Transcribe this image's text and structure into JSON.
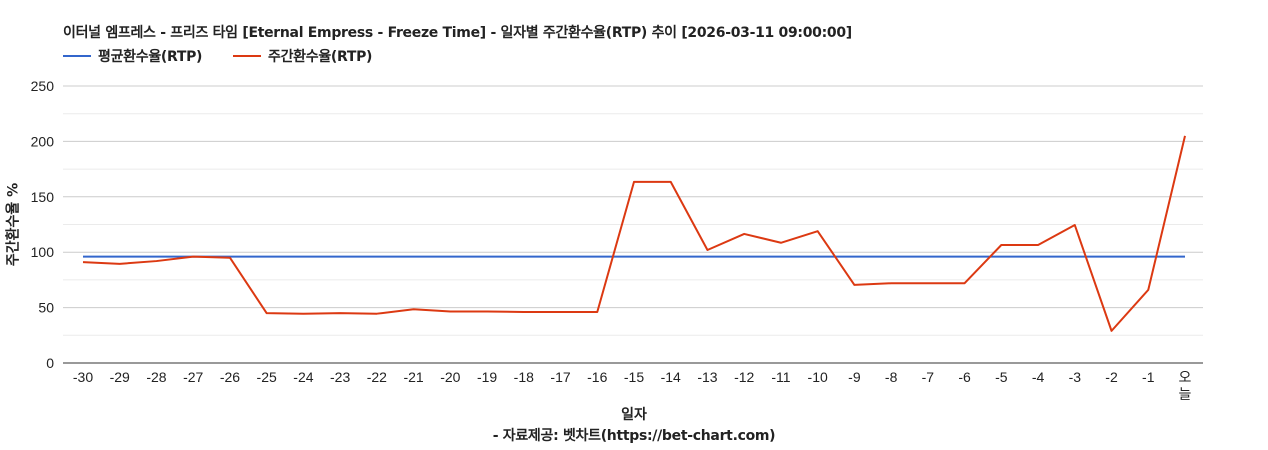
{
  "chart_data": {
    "type": "line",
    "title": "이터널 엠프레스 - 프리즈 타임 [Eternal Empress - Freeze Time] - 일자별 주간환수율(RTP) 추이 [2026-03-11 09:00:00]",
    "xlabel": "일자",
    "ylabel": "주간환수율 %",
    "source": "- 자료제공: 벳차트(https://bet-chart.com)",
    "categories": [
      "-30",
      "-29",
      "-28",
      "-27",
      "-26",
      "-25",
      "-24",
      "-23",
      "-22",
      "-21",
      "-20",
      "-19",
      "-18",
      "-17",
      "-16",
      "-15",
      "-14",
      "-13",
      "-12",
      "-11",
      "-10",
      "-9",
      "-8",
      "-7",
      "-6",
      "-5",
      "-4",
      "-3",
      "-2",
      "-1",
      "오늘"
    ],
    "ylim": [
      0,
      250
    ],
    "yticks": [
      0,
      50,
      100,
      150,
      200,
      250
    ],
    "grid": true,
    "legend_position": "top-left",
    "series": [
      {
        "name": "평균환수율(RTP)",
        "color": "#3366cc",
        "values": [
          96,
          96,
          96,
          96,
          96,
          96,
          96,
          96,
          96,
          96,
          96,
          96,
          96,
          96,
          96,
          96,
          96,
          96,
          96,
          96,
          96,
          96,
          96,
          96,
          96,
          96,
          96,
          96,
          96,
          96,
          96
        ]
      },
      {
        "name": "주간환수율(RTP)",
        "color": "#dc3912",
        "values": [
          91,
          89.5,
          92,
          96,
          95,
          45,
          44.5,
          45,
          44.5,
          48.5,
          46.5,
          46.5,
          46,
          46,
          46,
          163.5,
          163.5,
          102,
          116.5,
          108.5,
          119,
          70.5,
          72,
          72,
          72,
          106.5,
          106.5,
          124.5,
          29,
          66,
          205
        ]
      }
    ]
  }
}
